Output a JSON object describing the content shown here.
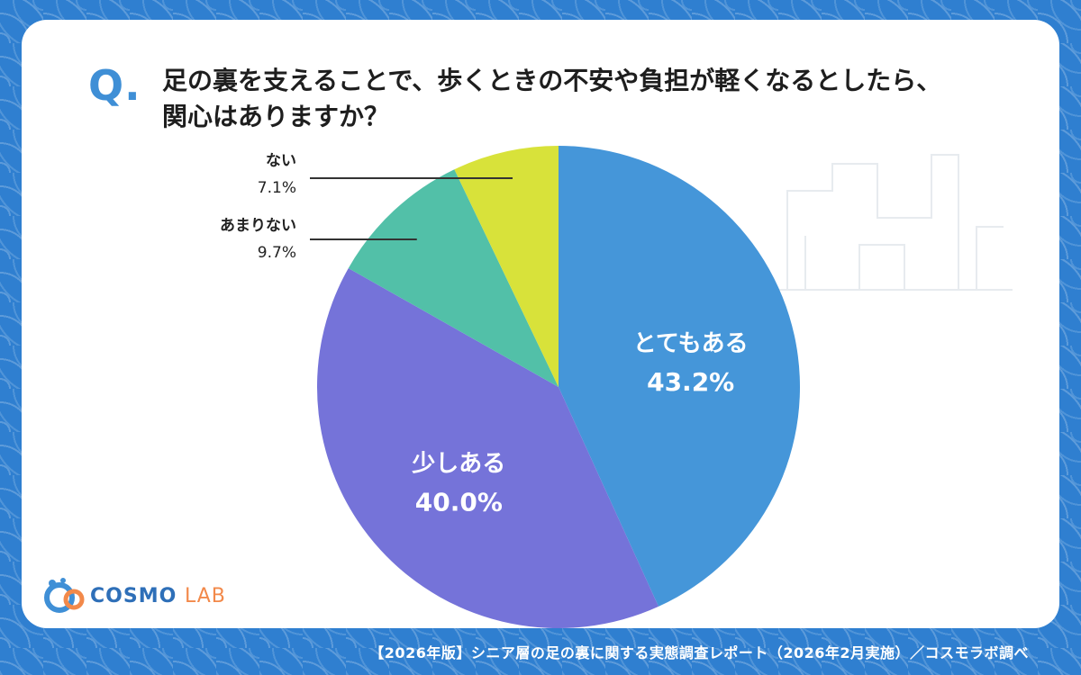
{
  "question_mark": "Q.",
  "question_lines": [
    "足の裏を支えることで、歩くときの不安や負担が軽くなるとしたら、",
    "関心はありますか？"
  ],
  "brand": {
    "cosmo": "COSMO",
    "lab": "LAB"
  },
  "footer": "【2026年版】シニア層の足の裏に関する実態調査レポート（2026年2月実施）／コスモラボ調べ",
  "colors": {
    "background": "#2f7fd0",
    "accent": "#3f8fd6"
  },
  "chart_data": {
    "type": "pie",
    "start": "12 o'clock",
    "direction": "clockwise",
    "slices": [
      {
        "label": "とてもある",
        "value": 43.2,
        "display": "43.2%",
        "color": "#4596d9",
        "label_position": "inside"
      },
      {
        "label": "少しある",
        "value": 40.0,
        "display": "40.0%",
        "color": "#7573d9",
        "label_position": "inside"
      },
      {
        "label": "あまりない",
        "value": 9.7,
        "display": "9.7%",
        "color": "#52c0a8",
        "label_position": "outside-left"
      },
      {
        "label": "ない",
        "value": 7.1,
        "display": "7.1%",
        "color": "#d8e23a",
        "label_position": "outside-left"
      }
    ]
  }
}
